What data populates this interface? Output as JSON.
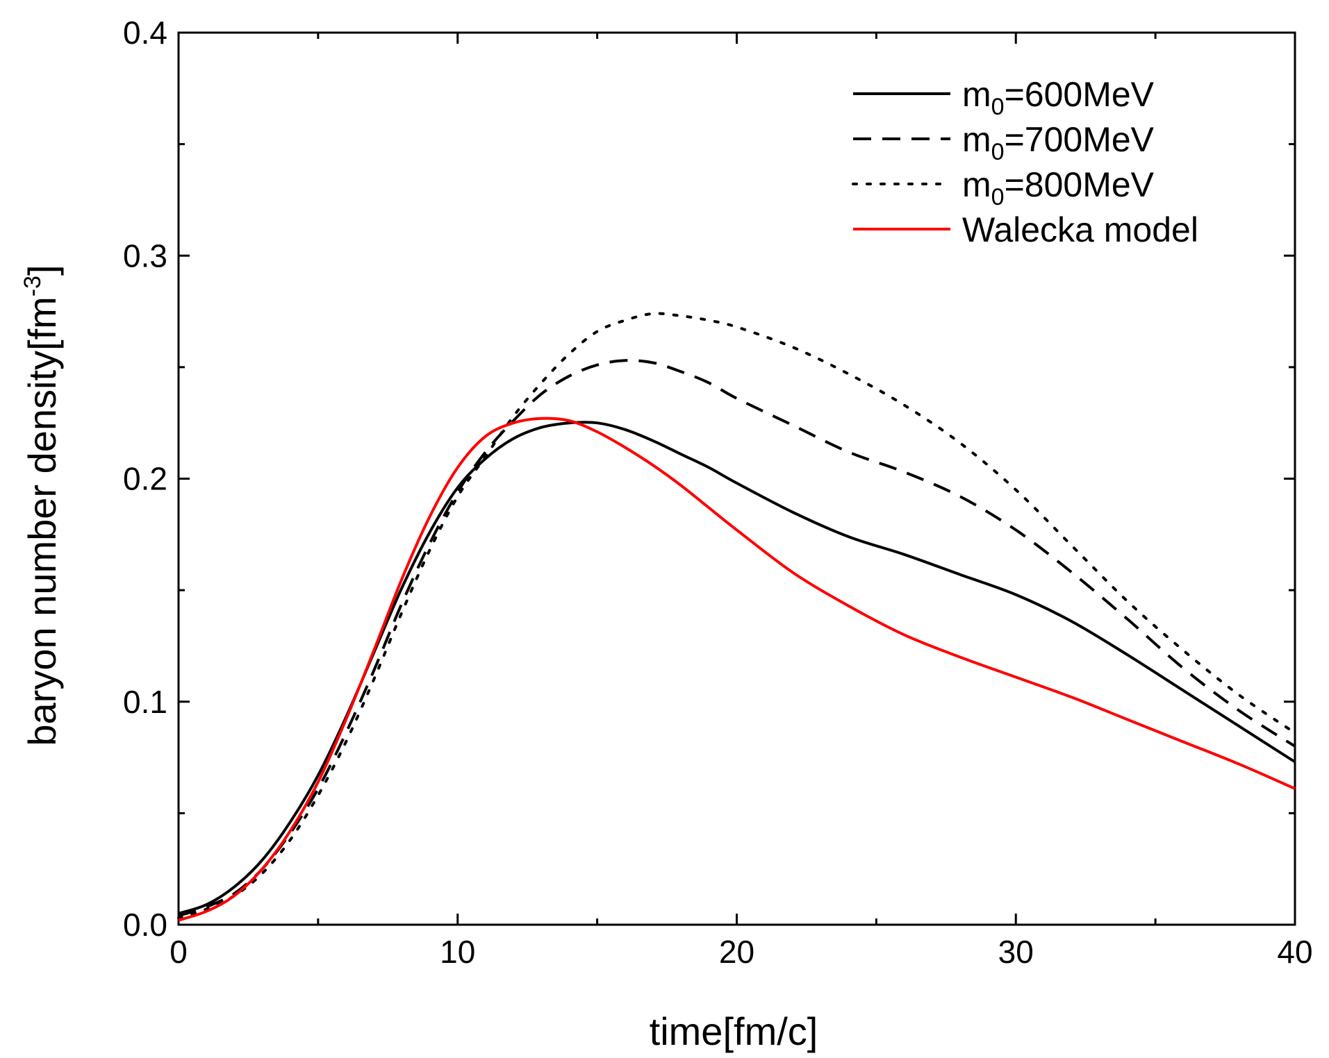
{
  "chart_data": {
    "type": "line",
    "title": "",
    "xlabel": "time[fm/c]",
    "ylabel_main": "baryon number density[fm",
    "ylabel_sup": "-3",
    "ylabel_close": "]",
    "xlim": [
      0,
      40
    ],
    "ylim": [
      0,
      0.4
    ],
    "xticks": [
      0,
      10,
      20,
      30,
      40
    ],
    "xtick_labels": [
      "0",
      "10",
      "20",
      "30",
      "40"
    ],
    "yticks": [
      0,
      0.1,
      0.2,
      0.3,
      0.4
    ],
    "ytick_labels": [
      "0.0",
      "0.1",
      "0.2",
      "0.3",
      "0.4"
    ],
    "x_minor_step": 5,
    "y_minor_step": 0.05,
    "grid": false,
    "legend_position": "top-right",
    "series": [
      {
        "name": "m0=600MeV",
        "legend_main": "m",
        "legend_sub": "0",
        "legend_rest": "=600MeV",
        "color": "#000000",
        "style": "solid",
        "x": [
          0,
          1,
          2,
          3,
          4,
          5,
          6,
          7,
          8,
          9,
          10,
          11,
          12,
          13,
          14,
          15,
          16,
          17,
          18,
          19,
          20,
          22,
          24,
          26,
          28,
          30,
          32,
          34,
          36,
          38,
          40
        ],
        "y": [
          0.005,
          0.009,
          0.017,
          0.029,
          0.046,
          0.067,
          0.093,
          0.122,
          0.151,
          0.176,
          0.196,
          0.209,
          0.218,
          0.223,
          0.225,
          0.225,
          0.222,
          0.217,
          0.211,
          0.205,
          0.198,
          0.185,
          0.174,
          0.166,
          0.157,
          0.148,
          0.136,
          0.121,
          0.105,
          0.089,
          0.073
        ]
      },
      {
        "name": "m0=700MeV",
        "legend_main": "m",
        "legend_sub": "0",
        "legend_rest": "=700MeV",
        "color": "#000000",
        "style": "dashed",
        "x": [
          0,
          1,
          2,
          3,
          4,
          5,
          6,
          7,
          8,
          9,
          10,
          11,
          12,
          13,
          14,
          15,
          16,
          17,
          18,
          19,
          20,
          22,
          24,
          26,
          28,
          30,
          32,
          34,
          36,
          38,
          40
        ],
        "y": [
          0.004,
          0.008,
          0.014,
          0.025,
          0.041,
          0.061,
          0.086,
          0.114,
          0.144,
          0.171,
          0.194,
          0.212,
          0.226,
          0.238,
          0.246,
          0.251,
          0.253,
          0.252,
          0.248,
          0.243,
          0.236,
          0.224,
          0.212,
          0.203,
          0.192,
          0.177,
          0.158,
          0.137,
          0.115,
          0.096,
          0.08
        ]
      },
      {
        "name": "m0=800MeV",
        "legend_main": "m",
        "legend_sub": "0",
        "legend_rest": "=800MeV",
        "color": "#000000",
        "style": "dotted",
        "x": [
          0,
          1,
          2,
          3,
          4,
          5,
          6,
          7,
          8,
          9,
          10,
          11,
          12,
          13,
          14,
          15,
          16,
          17,
          18,
          19,
          20,
          22,
          24,
          26,
          28,
          30,
          32,
          34,
          36,
          38,
          40
        ],
        "y": [
          0.003,
          0.007,
          0.013,
          0.023,
          0.038,
          0.058,
          0.082,
          0.11,
          0.14,
          0.168,
          0.192,
          0.21,
          0.228,
          0.243,
          0.256,
          0.266,
          0.271,
          0.274,
          0.273,
          0.271,
          0.268,
          0.259,
          0.247,
          0.233,
          0.216,
          0.195,
          0.17,
          0.145,
          0.123,
          0.103,
          0.086
        ]
      },
      {
        "name": "Walecka model",
        "legend_main": "Walecka model",
        "legend_sub": "",
        "legend_rest": "",
        "color": "#ff0000",
        "style": "solid",
        "x": [
          0,
          1,
          2,
          3,
          4,
          5,
          6,
          7,
          8,
          9,
          10,
          11,
          12,
          13,
          14,
          15,
          16,
          17,
          18,
          19,
          20,
          22,
          24,
          26,
          28,
          30,
          32,
          34,
          36,
          38,
          40
        ],
        "y": [
          0.002,
          0.006,
          0.013,
          0.025,
          0.042,
          0.064,
          0.092,
          0.123,
          0.155,
          0.183,
          0.205,
          0.219,
          0.225,
          0.227,
          0.226,
          0.221,
          0.214,
          0.206,
          0.197,
          0.187,
          0.177,
          0.158,
          0.143,
          0.13,
          0.12,
          0.111,
          0.102,
          0.092,
          0.082,
          0.072,
          0.061
        ]
      }
    ]
  }
}
